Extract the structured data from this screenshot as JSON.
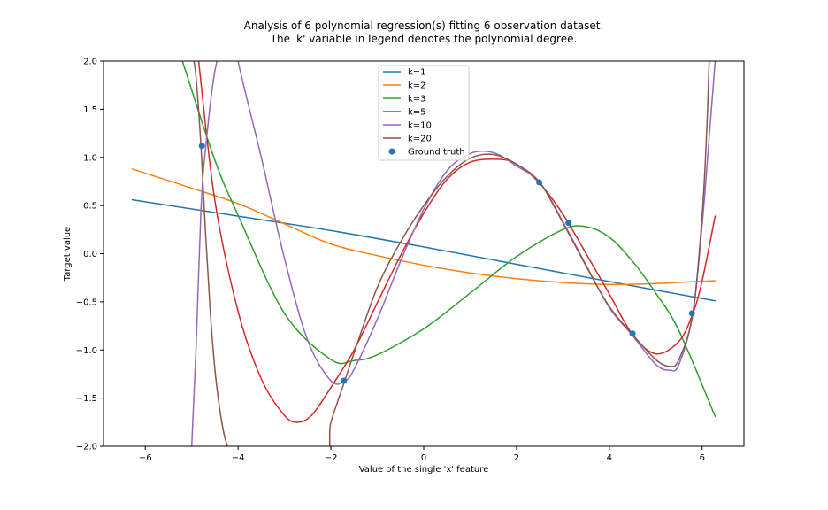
{
  "chart_data": {
    "type": "line",
    "title_lines": [
      "Analysis of 6 polynomial regression(s) fitting 6 observation dataset.",
      "The 'k' variable in legend denotes the polynomial degree."
    ],
    "xlabel": "Value of the single 'x' feature",
    "ylabel": "Target value",
    "xlim": [
      -6.9,
      6.9
    ],
    "ylim": [
      -2.0,
      2.0
    ],
    "xticks": [
      -6,
      -4,
      -2,
      0,
      2,
      4,
      6
    ],
    "xtick_labels": [
      "−6",
      "−4",
      "−2",
      "0",
      "2",
      "4",
      "6"
    ],
    "yticks": [
      2.0,
      1.5,
      1.0,
      0.5,
      0.0,
      -0.5,
      -1.0,
      -1.5,
      -2.0
    ],
    "ytick_labels": [
      "2.0",
      "1.5",
      "1.0",
      "0.5",
      "0.0",
      "−0.5",
      "−1.0",
      "−1.5",
      "−2.0"
    ],
    "grid": false,
    "legend_position": "top-center",
    "series": [
      {
        "name": "k=1",
        "color": "#1f77b4",
        "x": [
          -6.28,
          -4.0,
          -2.0,
          0.0,
          2.0,
          4.0,
          6.28
        ],
        "y": [
          0.56,
          0.39,
          0.24,
          0.07,
          -0.11,
          -0.29,
          -0.49
        ]
      },
      {
        "name": "k=2",
        "color": "#ff7f0e",
        "x": [
          -6.28,
          -5.0,
          -4.0,
          -3.0,
          -2.0,
          -1.0,
          0.0,
          1.0,
          2.0,
          3.0,
          4.0,
          5.0,
          6.28
        ],
        "y": [
          0.88,
          0.68,
          0.52,
          0.31,
          0.1,
          -0.02,
          -0.12,
          -0.2,
          -0.26,
          -0.3,
          -0.32,
          -0.31,
          -0.28
        ]
      },
      {
        "name": "k=3",
        "color": "#2ca02c",
        "x": [
          -5.2,
          -4.5,
          -4.0,
          -3.0,
          -2.0,
          -1.5,
          -1.0,
          0.0,
          1.0,
          2.0,
          3.0,
          3.5,
          4.0,
          4.5,
          5.0,
          5.5,
          6.28
        ],
        "y": [
          2.0,
          0.97,
          0.4,
          -0.62,
          -1.1,
          -1.11,
          -1.05,
          -0.78,
          -0.41,
          -0.03,
          0.25,
          0.28,
          0.17,
          -0.08,
          -0.41,
          -0.8,
          -1.69
        ]
      },
      {
        "name": "k=5",
        "color": "#d62728",
        "x": [
          -4.85,
          -4.5,
          -4.0,
          -3.5,
          -3.0,
          -2.7,
          -2.4,
          -2.0,
          -1.5,
          -1.0,
          -0.5,
          0.0,
          0.5,
          1.0,
          1.6,
          2.0,
          2.5,
          3.0,
          3.5,
          4.0,
          4.5,
          5.0,
          5.5,
          5.8,
          6.0,
          6.28
        ],
        "y": [
          2.0,
          0.55,
          -0.6,
          -1.3,
          -1.68,
          -1.75,
          -1.67,
          -1.39,
          -1.0,
          -0.51,
          -0.02,
          0.42,
          0.77,
          0.95,
          0.98,
          0.93,
          0.73,
          0.41,
          0.0,
          -0.42,
          -0.84,
          -1.04,
          -0.91,
          -0.62,
          -0.28,
          0.39
        ]
      },
      {
        "name": "k=10",
        "color": "#9467bd",
        "x": [
          -5.0,
          -4.9,
          -4.8,
          -4.7,
          -4.5,
          -4.3,
          -4.15,
          -4.0,
          -3.5,
          -3.0,
          -2.5,
          -2.0,
          -1.7,
          -1.5,
          -1.0,
          -0.5,
          0.0,
          0.5,
          1.0,
          1.5,
          2.0,
          2.5,
          3.0,
          3.5,
          4.0,
          4.5,
          5.0,
          5.3,
          5.5,
          5.8,
          6.0,
          6.15,
          6.28
        ],
        "y": [
          -2.0,
          -0.9,
          0.45,
          1.1,
          1.9,
          2.2,
          2.5,
          2.0,
          1.0,
          -0.05,
          -0.9,
          -1.32,
          -1.32,
          -1.2,
          -0.68,
          -0.08,
          0.46,
          0.86,
          1.04,
          1.05,
          0.91,
          0.74,
          0.33,
          -0.12,
          -0.56,
          -0.85,
          -1.15,
          -1.21,
          -1.15,
          -0.62,
          0.3,
          1.2,
          2.0
        ]
      },
      {
        "name": "k=20",
        "color": "#8c564b",
        "x": [
          -4.95,
          -4.9,
          -4.8,
          -4.7,
          -4.6,
          -4.5,
          -4.4,
          -4.3,
          -4.2,
          -4.15,
          -2.25,
          -2.0,
          -1.7,
          -1.5,
          -1.0,
          -0.5,
          0.0,
          0.5,
          1.0,
          1.5,
          2.0,
          2.5,
          3.0,
          3.5,
          4.0,
          4.5,
          5.0,
          5.3,
          5.5,
          5.8,
          6.0,
          6.1,
          6.15
        ],
        "y": [
          2.0,
          1.8,
          1.12,
          0.2,
          -0.6,
          -1.2,
          -1.6,
          -1.88,
          -2.05,
          -2.2,
          -2.2,
          -1.75,
          -1.32,
          -1.03,
          -0.35,
          0.12,
          0.5,
          0.8,
          0.99,
          1.03,
          0.93,
          0.74,
          0.32,
          -0.13,
          -0.55,
          -0.84,
          -1.1,
          -1.17,
          -1.1,
          -0.62,
          0.4,
          1.3,
          2.0
        ]
      }
    ],
    "ground_truth": {
      "name": "Ground truth",
      "color": "#1f77b4",
      "x": [
        -4.78,
        -1.72,
        2.49,
        3.12,
        4.5,
        5.78
      ],
      "y": [
        1.12,
        -1.32,
        0.74,
        0.32,
        -0.83,
        -0.62
      ]
    }
  }
}
